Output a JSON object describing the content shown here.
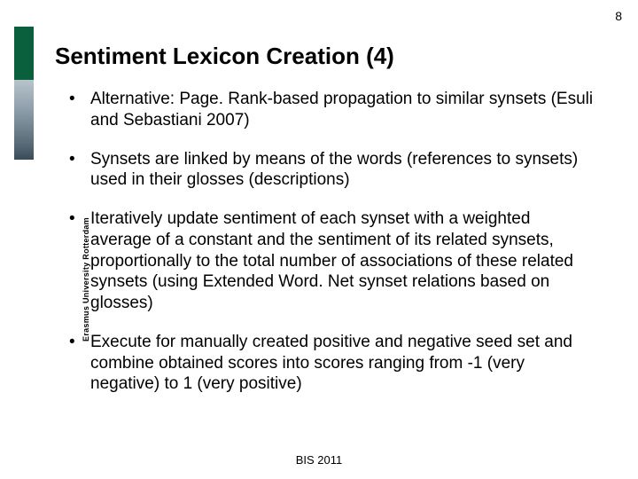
{
  "page_number": "8",
  "sidebar": {
    "institution_text": "Erasmus University Rotterdam",
    "green_color": "#0a5f3c"
  },
  "title": "Sentiment Lexicon Creation (4)",
  "bullets": [
    "Alternative: Page. Rank-based propagation to similar synsets (Esuli and Sebastiani 2007)",
    "Synsets are linked by means of the words (references to synsets) used in their glosses (descriptions)",
    "Iteratively update sentiment of each synset with a weighted average of a constant and the sentiment of its related synsets, proportionally to the total number of associations of these related synsets (using Extended Word. Net synset relations based on glosses)",
    "Execute for manually created positive and negative seed set and combine obtained scores into scores ranging from -1 (very negative) to 1 (very positive)"
  ],
  "footer": "BIS 2011",
  "fonts": {
    "title_size": 26,
    "body_size": 19,
    "footer_size": 13,
    "page_num_size": 14,
    "sidebar_size": 9
  },
  "colors": {
    "text": "#000000",
    "background": "#ffffff"
  }
}
